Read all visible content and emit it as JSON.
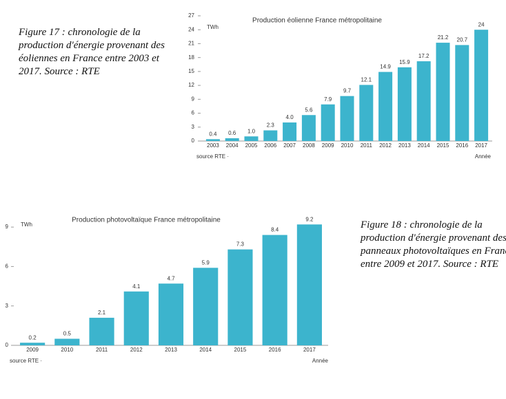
{
  "chart_data": [
    {
      "type": "bar",
      "title": "Production éolienne France métropolitaine",
      "unit": "TWh",
      "source": "source RTE ·",
      "xlabel": "Année",
      "categories": [
        "2003",
        "2004",
        "2005",
        "2006",
        "2007",
        "2008",
        "2009",
        "2010",
        "2011",
        "2012",
        "2013",
        "2014",
        "2015",
        "2016",
        "2017"
      ],
      "values": [
        0.4,
        0.6,
        1.0,
        2.3,
        4.0,
        5.6,
        7.9,
        9.7,
        12.1,
        14.9,
        15.9,
        17.2,
        21.2,
        20.7,
        24
      ],
      "value_labels": [
        "0.4",
        "0.6",
        "1.0",
        "2.3",
        "4.0",
        "5.6",
        "7.9",
        "9.7",
        "12.1",
        "14.9",
        "15.9",
        "17.2",
        "21.2",
        "20.7",
        "24"
      ],
      "color": "#3cb4cd",
      "ylim": [
        0,
        27
      ],
      "yticks": [
        0,
        3,
        6,
        9,
        12,
        15,
        18,
        21,
        24,
        27
      ]
    },
    {
      "type": "bar",
      "title": "Production photovoltaïque France métropolitaine",
      "unit": "TWh",
      "source": "source RTE ·",
      "xlabel": "Année",
      "categories": [
        "2009",
        "2010",
        "2011",
        "2012",
        "2013",
        "2014",
        "2015",
        "2016",
        "2017"
      ],
      "values": [
        0.2,
        0.5,
        2.1,
        4.1,
        4.7,
        5.9,
        7.3,
        8.4,
        9.2
      ],
      "color": "#3cb4cd",
      "ylim": [
        0,
        10
      ],
      "yticks": [
        0,
        3,
        6,
        9
      ]
    }
  ],
  "captions": [
    "Figure 17 : chronologie de la production d'énergie provenant des éoliennes en France entre 2003 et 2017. Source : RTE",
    "Figure 18 : chronologie de la production d'énergie provenant des panneaux photovoltaïques en France entre 2009 et 2017. Source : RTE"
  ]
}
